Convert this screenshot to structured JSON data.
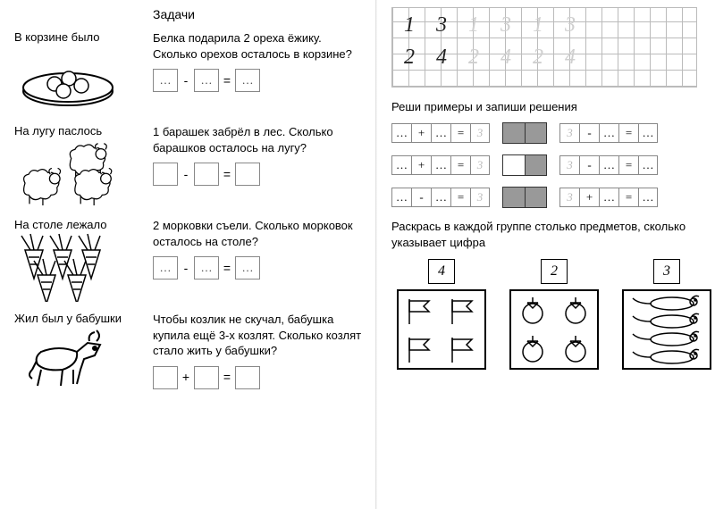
{
  "left": {
    "title": "Задачи",
    "tasks": [
      {
        "label": "В корзине было",
        "text": "Белка подарила 2 ореха ёжику. Сколько орехов осталось в корзине?",
        "op": "-"
      },
      {
        "label": "На лугу паслось",
        "text": "1 барашек забрёл в лес. Сколько барашков оста­лось на лугу?",
        "op": "-"
      },
      {
        "label": "На столе лежало",
        "text": "2 морковки съели. Сколько морковок оста­лось на столе?",
        "op": "-"
      },
      {
        "label": "Жил был у бабушки",
        "text": "Чтобы козлик не скучал, бабушка купила ещё 3-х козлят. Сколько козлят стало жить у бабушки?",
        "op": "+"
      }
    ]
  },
  "right": {
    "writing": {
      "row1": [
        "1",
        "3",
        "1",
        "3",
        "1",
        "3"
      ],
      "row2": [
        "2",
        "4",
        "2",
        "4",
        "2",
        "4"
      ],
      "dark_count": 2,
      "color_dark": "#222",
      "color_light": "#cfcfcf"
    },
    "examples_title": "Реши примеры и запиши решения",
    "examples": [
      {
        "lhs_op": "+",
        "rhs": "3",
        "pair": [
          "grey",
          "grey"
        ],
        "r_op": "-",
        "r_pre": "3"
      },
      {
        "lhs_op": "+",
        "rhs": "3",
        "pair": [
          "",
          "grey"
        ],
        "r_op": "-",
        "r_pre": "3"
      },
      {
        "lhs_op": "-",
        "rhs": "3",
        "pair": [
          "grey",
          "grey"
        ],
        "r_op": "+",
        "r_pre": "3"
      }
    ],
    "count_title": "Раскрась в каждой группе столько предметов, сколько указывает цифра",
    "count": [
      {
        "n": "4",
        "kind": "flag"
      },
      {
        "n": "2",
        "kind": "bag"
      },
      {
        "n": "3",
        "kind": "mouse"
      }
    ]
  }
}
